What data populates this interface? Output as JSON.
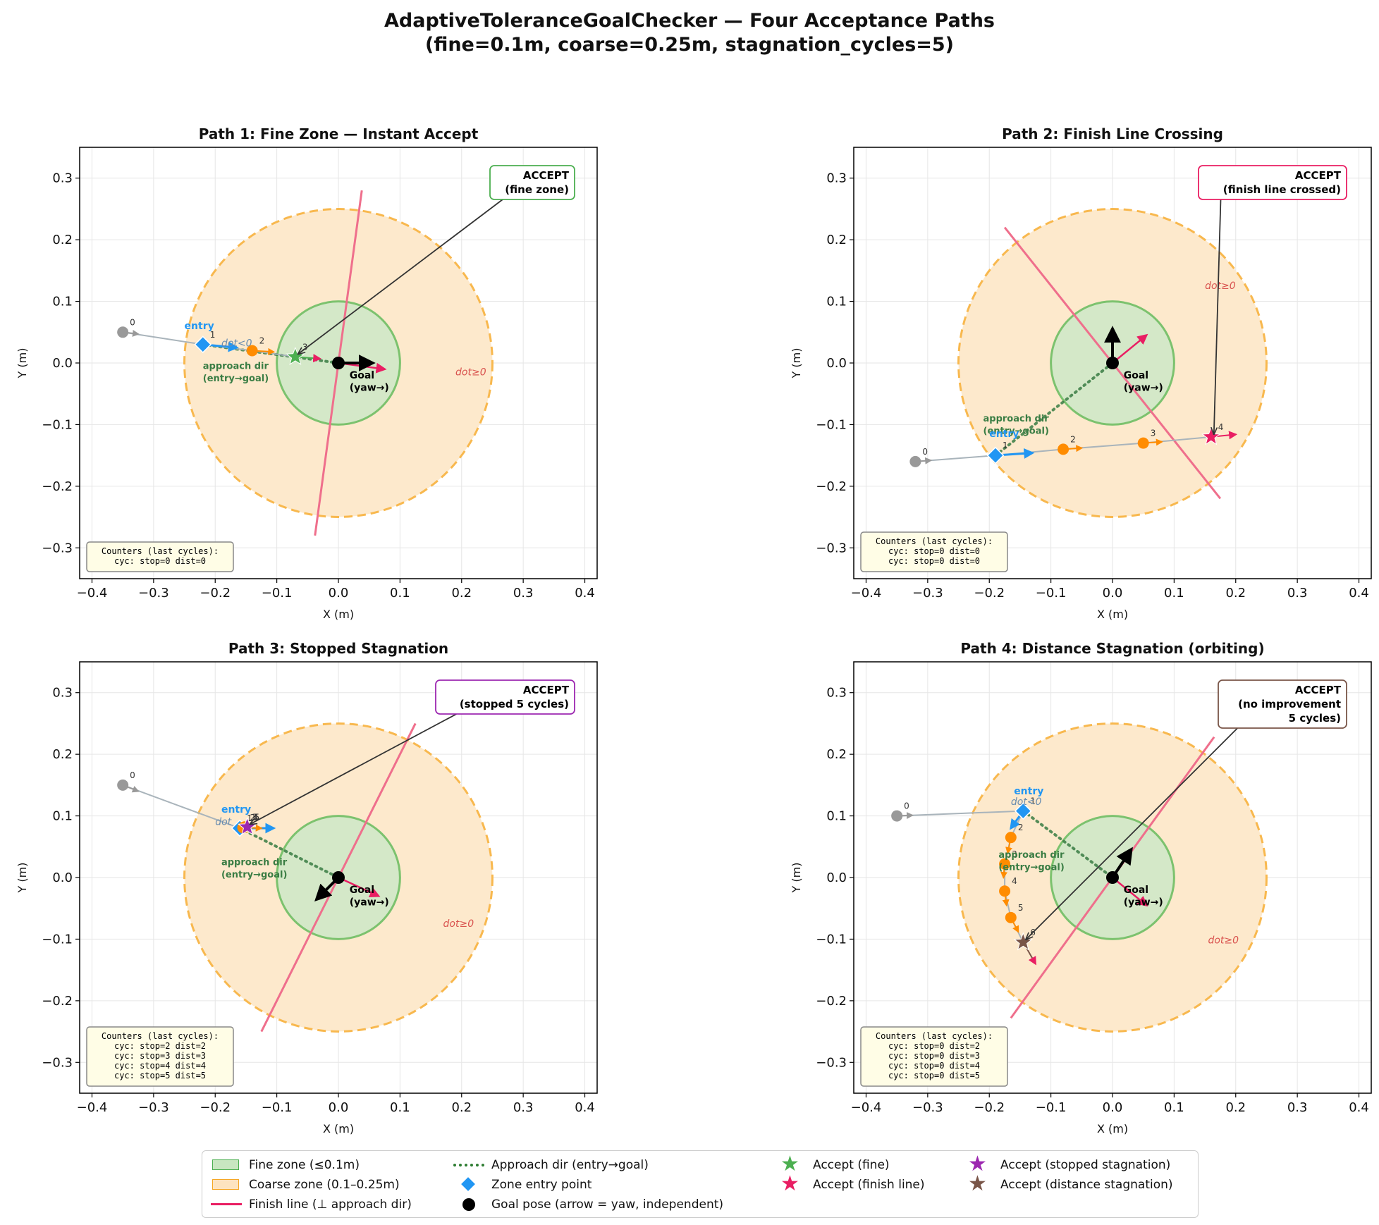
{
  "figure": {
    "title_line1": "AdaptiveToleranceGoalChecker — Four Acceptance Paths",
    "title_line2": "(fine=0.1m, coarse=0.25m, stagnation_cycles=5)"
  },
  "colors": {
    "fine_fill": "#d4e8c8",
    "fine_edge": "#7cc26e",
    "coarse_fill": "#fde9cc",
    "coarse_edge": "#f8b84e",
    "finish_line": "#ef6f8c",
    "approach": "#3a7d44",
    "entry": "#2196f3",
    "orange_point": "#ff8c00",
    "gray_point": "#999999",
    "accept_fine": "#4caf50",
    "accept_finish": "#e91e63",
    "accept_stopped": "#9c27b0",
    "accept_distance": "#795548"
  },
  "chart_data": [
    {
      "type": "scatter",
      "title": "Path 1: Fine Zone — Instant Accept",
      "xlabel": "X (m)",
      "ylabel": "Y (m)",
      "xlim": [
        -0.42,
        0.42
      ],
      "ylim": [
        -0.35,
        0.35
      ],
      "xticks": [
        -0.4,
        -0.3,
        -0.2,
        -0.1,
        0.0,
        0.1,
        0.2,
        0.3,
        0.4
      ],
      "yticks": [
        -0.3,
        -0.2,
        -0.1,
        0.0,
        0.1,
        0.2,
        0.3
      ],
      "xtick_labels": [
        "−0.4",
        "−0.3",
        "−0.2",
        "−0.1",
        "0.0",
        "0.1",
        "0.2",
        "0.3",
        "0.4"
      ],
      "ytick_labels": [
        "−0.3",
        "−0.2",
        "−0.1",
        "0.0",
        "0.1",
        "0.2",
        "0.3"
      ],
      "grid": true,
      "fine_radius": 0.1,
      "coarse_radius": 0.25,
      "finish_line": [
        [
          -0.038,
          -0.28
        ],
        [
          0.038,
          0.28
        ]
      ],
      "trajectory": [
        {
          "index": "0",
          "x": -0.35,
          "y": 0.05,
          "kind": "outside"
        },
        {
          "index": "1",
          "x": -0.22,
          "y": 0.03,
          "kind": "entry"
        },
        {
          "index": "2",
          "x": -0.14,
          "y": 0.02,
          "kind": "coarse"
        },
        {
          "index": "3",
          "x": -0.07,
          "y": 0.01,
          "kind": "accept"
        }
      ],
      "heading_tips": [
        [
          -0.325,
          0.047
        ],
        [
          -0.165,
          0.025
        ],
        [
          -0.105,
          0.018
        ],
        [
          -0.03,
          0.007
        ]
      ],
      "approach_line": [
        [
          -0.22,
          0.03
        ],
        [
          0.0,
          0.0
        ]
      ],
      "goal_yaw": [
        0.055,
        0.0
      ],
      "robot_heading": [
        0.075,
        -0.01
      ],
      "accept_kind": "fine",
      "accept_text_line1": "ACCEPT",
      "accept_text_line2": "(fine zone)",
      "accept_text_line3": "",
      "callout_anchor_data": [
        0.25,
        0.27
      ],
      "entry_label": "entry",
      "entry_label_pos": [
        -0.25,
        0.055
      ],
      "dot_neg_label": "dot<0",
      "dot_neg_pos": [
        -0.19,
        0.027
      ],
      "dot_pos_label": "dot≥0",
      "dot_pos_pos": [
        0.19,
        -0.02
      ],
      "approach_label_line1": "approach dir",
      "approach_label_line2": "(entry→goal)",
      "approach_label_pos": [
        -0.22,
        -0.01
      ],
      "goal_label_line1": "Goal",
      "goal_label_line2": "(yaw→)",
      "counters_title": "Counters (last cycles):",
      "counters": [
        "cyc: stop=0 dist=0"
      ]
    },
    {
      "type": "scatter",
      "title": "Path 2: Finish Line Crossing",
      "xlabel": "X (m)",
      "ylabel": "Y (m)",
      "xlim": [
        -0.42,
        0.42
      ],
      "ylim": [
        -0.35,
        0.35
      ],
      "xticks": [
        -0.4,
        -0.3,
        -0.2,
        -0.1,
        0.0,
        0.1,
        0.2,
        0.3,
        0.4
      ],
      "yticks": [
        -0.3,
        -0.2,
        -0.1,
        0.0,
        0.1,
        0.2,
        0.3
      ],
      "xtick_labels": [
        "−0.4",
        "−0.3",
        "−0.2",
        "−0.1",
        "0.0",
        "0.1",
        "0.2",
        "0.3",
        "0.4"
      ],
      "ytick_labels": [
        "−0.3",
        "−0.2",
        "−0.1",
        "0.0",
        "0.1",
        "0.2",
        "0.3"
      ],
      "grid": true,
      "fine_radius": 0.1,
      "coarse_radius": 0.25,
      "finish_line": [
        [
          -0.175,
          0.22
        ],
        [
          0.175,
          -0.22
        ]
      ],
      "trajectory": [
        {
          "index": "0",
          "x": -0.32,
          "y": -0.16,
          "kind": "outside"
        },
        {
          "index": "1",
          "x": -0.19,
          "y": -0.15,
          "kind": "entry"
        },
        {
          "index": "2",
          "x": -0.08,
          "y": -0.14,
          "kind": "coarse"
        },
        {
          "index": "3",
          "x": 0.05,
          "y": -0.13,
          "kind": "coarse"
        },
        {
          "index": "4",
          "x": 0.16,
          "y": -0.12,
          "kind": "accept"
        }
      ],
      "heading_tips": [
        [
          -0.295,
          -0.158
        ],
        [
          -0.13,
          -0.146
        ],
        [
          -0.05,
          -0.138
        ],
        [
          0.08,
          -0.128
        ],
        [
          0.2,
          -0.116
        ]
      ],
      "approach_line": [
        [
          -0.19,
          -0.15
        ],
        [
          0.0,
          0.0
        ]
      ],
      "goal_yaw": [
        0.0,
        0.055
      ],
      "robot_heading": [
        0.055,
        0.045
      ],
      "accept_kind": "finish",
      "accept_text_line1": "ACCEPT",
      "accept_text_line2": "(finish line crossed)",
      "accept_text_line3": "",
      "callout_anchor_data": [
        0.26,
        0.27
      ],
      "entry_label": "entry",
      "entry_label_pos": [
        -0.2,
        -0.12
      ],
      "dot_neg_label": "",
      "dot_neg_pos": [
        0,
        0
      ],
      "dot_pos_label": "dot≥0",
      "dot_pos_pos": [
        0.15,
        0.12
      ],
      "approach_label_line1": "approach dir",
      "approach_label_line2": "(entry→goal)",
      "approach_label_pos": [
        -0.21,
        -0.095
      ],
      "goal_label_line1": "Goal",
      "goal_label_line2": "(yaw→)",
      "counters_title": "Counters (last cycles):",
      "counters": [
        "cyc: stop=0 dist=0",
        "cyc: stop=0 dist=0"
      ]
    },
    {
      "type": "scatter",
      "title": "Path 3: Stopped Stagnation",
      "xlabel": "X (m)",
      "ylabel": "Y (m)",
      "xlim": [
        -0.42,
        0.42
      ],
      "ylim": [
        -0.35,
        0.35
      ],
      "xticks": [
        -0.4,
        -0.3,
        -0.2,
        -0.1,
        0.0,
        0.1,
        0.2,
        0.3,
        0.4
      ],
      "yticks": [
        -0.3,
        -0.2,
        -0.1,
        0.0,
        0.1,
        0.2,
        0.3
      ],
      "xtick_labels": [
        "−0.4",
        "−0.3",
        "−0.2",
        "−0.1",
        "0.0",
        "0.1",
        "0.2",
        "0.3",
        "0.4"
      ],
      "ytick_labels": [
        "−0.3",
        "−0.2",
        "−0.1",
        "0.0",
        "0.1",
        "0.2",
        "0.3"
      ],
      "grid": true,
      "fine_radius": 0.1,
      "coarse_radius": 0.25,
      "finish_line": [
        [
          -0.125,
          -0.25
        ],
        [
          0.125,
          0.25
        ]
      ],
      "trajectory": [
        {
          "index": "0",
          "x": -0.35,
          "y": 0.15,
          "kind": "outside"
        },
        {
          "index": "1",
          "x": -0.16,
          "y": 0.08,
          "kind": "entry"
        },
        {
          "index": "2",
          "x": -0.155,
          "y": 0.081,
          "kind": "coarse"
        },
        {
          "index": "3",
          "x": -0.152,
          "y": 0.082,
          "kind": "coarse"
        },
        {
          "index": "4",
          "x": -0.15,
          "y": 0.082,
          "kind": "coarse"
        },
        {
          "index": "5",
          "x": -0.148,
          "y": 0.082,
          "kind": "accept"
        }
      ],
      "heading_tips": [
        [
          -0.325,
          0.14
        ],
        [
          -0.105,
          0.08
        ],
        [
          -0.125,
          0.08
        ]
      ],
      "approach_line": [
        [
          -0.16,
          0.08
        ],
        [
          0.0,
          0.0
        ]
      ],
      "goal_yaw": [
        -0.035,
        -0.035
      ],
      "robot_heading": [
        0.065,
        -0.03
      ],
      "accept_kind": "stopped",
      "accept_text_line1": "ACCEPT",
      "accept_text_line2": "(stopped 5 cycles)",
      "accept_text_line3": "",
      "callout_anchor_data": [
        0.23,
        0.27
      ],
      "entry_label": "entry",
      "entry_label_pos": [
        -0.19,
        0.105
      ],
      "dot_neg_label": "dot",
      "dot_neg_pos": [
        -0.2,
        0.085
      ],
      "dot_pos_label": "dot≥0",
      "dot_pos_pos": [
        0.17,
        -0.08
      ],
      "approach_label_line1": "approach dir",
      "approach_label_line2": "(entry→goal)",
      "approach_label_pos": [
        -0.19,
        0.02
      ],
      "goal_label_line1": "Goal",
      "goal_label_line2": "(yaw→)",
      "counters_title": "Counters (last cycles):",
      "counters": [
        "cyc: stop=2 dist=2",
        "cyc: stop=3 dist=3",
        "cyc: stop=4 dist=4",
        "cyc: stop=5 dist=5"
      ]
    },
    {
      "type": "scatter",
      "title": "Path 4: Distance Stagnation (orbiting)",
      "xlabel": "X (m)",
      "ylabel": "Y (m)",
      "xlim": [
        -0.42,
        0.42
      ],
      "ylim": [
        -0.35,
        0.35
      ],
      "xticks": [
        -0.4,
        -0.3,
        -0.2,
        -0.1,
        0.0,
        0.1,
        0.2,
        0.3,
        0.4
      ],
      "yticks": [
        -0.3,
        -0.2,
        -0.1,
        0.0,
        0.1,
        0.2,
        0.3
      ],
      "xtick_labels": [
        "−0.4",
        "−0.3",
        "−0.2",
        "−0.1",
        "0.0",
        "0.1",
        "0.2",
        "0.3",
        "0.4"
      ],
      "ytick_labels": [
        "−0.3",
        "−0.2",
        "−0.1",
        "0.0",
        "0.1",
        "0.2",
        "0.3"
      ],
      "grid": true,
      "fine_radius": 0.1,
      "coarse_radius": 0.25,
      "finish_line": [
        [
          -0.165,
          -0.228
        ],
        [
          0.165,
          0.228
        ]
      ],
      "trajectory": [
        {
          "index": "0",
          "x": -0.35,
          "y": 0.1,
          "kind": "outside"
        },
        {
          "index": "1",
          "x": -0.145,
          "y": 0.108,
          "kind": "entry"
        },
        {
          "index": "2",
          "x": -0.165,
          "y": 0.065,
          "kind": "coarse"
        },
        {
          "index": "3",
          "x": -0.175,
          "y": 0.022,
          "kind": "coarse"
        },
        {
          "index": "4",
          "x": -0.175,
          "y": -0.022,
          "kind": "coarse"
        },
        {
          "index": "5",
          "x": -0.165,
          "y": -0.065,
          "kind": "coarse"
        },
        {
          "index": "6",
          "x": -0.145,
          "y": -0.105,
          "kind": "accept"
        }
      ],
      "heading_tips": [
        [
          -0.325,
          0.101
        ],
        [
          -0.165,
          0.08
        ],
        [
          -0.17,
          0.04
        ],
        [
          -0.177,
          0.0
        ],
        [
          -0.172,
          -0.045
        ],
        [
          -0.153,
          -0.088
        ],
        [
          -0.125,
          -0.14
        ]
      ],
      "approach_line": [
        [
          -0.145,
          0.108
        ],
        [
          0.0,
          0.0
        ]
      ],
      "goal_yaw": [
        0.03,
        0.045
      ],
      "robot_heading": [
        0.055,
        -0.045
      ],
      "accept_kind": "distance",
      "accept_text_line1": "ACCEPT",
      "accept_text_line2": "(no improvement",
      "accept_text_line3": "5 cycles)",
      "callout_anchor_data": [
        0.23,
        0.255
      ],
      "entry_label": "entry",
      "entry_label_pos": [
        -0.16,
        0.135
      ],
      "dot_neg_label": "dot<0",
      "dot_neg_pos": [
        -0.165,
        0.118
      ],
      "dot_pos_label": "dot≥0",
      "dot_pos_pos": [
        0.155,
        -0.107
      ],
      "approach_label_line1": "approach dir",
      "approach_label_line2": "(entry→goal)",
      "approach_label_pos": [
        -0.185,
        0.032
      ],
      "goal_label_line1": "Goal",
      "goal_label_line2": "(yaw→)",
      "counters_title": "Counters (last cycles):",
      "counters": [
        "cyc: stop=0 dist=2",
        "cyc: stop=0 dist=3",
        "cyc: stop=0 dist=4",
        "cyc: stop=0 dist=5"
      ]
    }
  ],
  "legend": {
    "items": [
      {
        "label": "Fine zone (≤0.1m)",
        "symbol": "box-fine"
      },
      {
        "label": "Coarse zone (0.1–0.25m)",
        "symbol": "box-coarse"
      },
      {
        "label": "Finish line (⊥ approach dir)",
        "symbol": "line-finish"
      },
      {
        "label": "Approach dir (entry→goal)",
        "symbol": "dotted-approach"
      },
      {
        "label": "Zone entry point",
        "symbol": "diamond-entry"
      },
      {
        "label": "Goal pose (arrow = yaw, independent)",
        "symbol": "circle-goal"
      },
      {
        "label": "Accept (fine)",
        "symbol": "star-fine"
      },
      {
        "label": "Accept (finish line)",
        "symbol": "star-finish"
      },
      {
        "label": "Accept (stopped stagnation)",
        "symbol": "star-stopped"
      },
      {
        "label": "Accept (distance stagnation)",
        "symbol": "star-distance"
      }
    ]
  }
}
